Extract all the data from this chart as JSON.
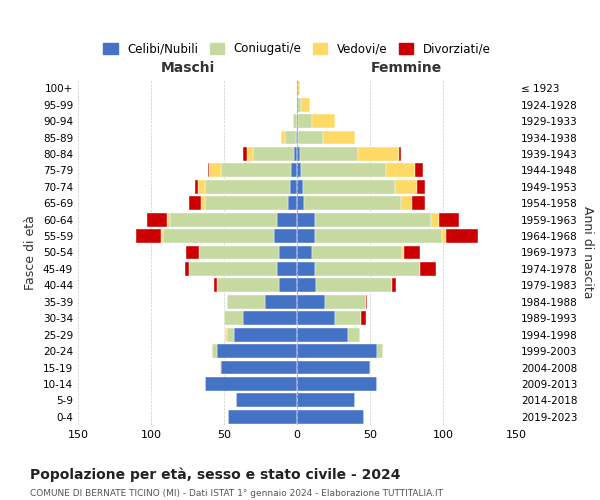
{
  "age_groups": [
    "0-4",
    "5-9",
    "10-14",
    "15-19",
    "20-24",
    "25-29",
    "30-34",
    "35-39",
    "40-44",
    "45-49",
    "50-54",
    "55-59",
    "60-64",
    "65-69",
    "70-74",
    "75-79",
    "80-84",
    "85-89",
    "90-94",
    "95-99",
    "100+"
  ],
  "birth_years": [
    "2019-2023",
    "2014-2018",
    "2009-2013",
    "2004-2008",
    "1999-2003",
    "1994-1998",
    "1989-1993",
    "1984-1988",
    "1979-1983",
    "1974-1978",
    "1969-1973",
    "1964-1968",
    "1959-1963",
    "1954-1958",
    "1949-1953",
    "1944-1948",
    "1939-1943",
    "1934-1938",
    "1929-1933",
    "1924-1928",
    "≤ 1923"
  ],
  "male": {
    "celibi": [
      47,
      42,
      63,
      52,
      55,
      43,
      37,
      22,
      12,
      14,
      12,
      16,
      14,
      6,
      5,
      4,
      2,
      1,
      0,
      0,
      0
    ],
    "coniugati": [
      0,
      0,
      0,
      1,
      3,
      5,
      13,
      26,
      43,
      60,
      55,
      76,
      73,
      57,
      58,
      48,
      28,
      7,
      3,
      0,
      0
    ],
    "vedovi": [
      0,
      0,
      0,
      0,
      0,
      1,
      0,
      0,
      0,
      0,
      0,
      1,
      2,
      3,
      5,
      8,
      4,
      3,
      0,
      0,
      0
    ],
    "divorziati": [
      0,
      0,
      0,
      0,
      0,
      0,
      0,
      0,
      2,
      3,
      9,
      17,
      14,
      8,
      2,
      1,
      3,
      0,
      0,
      0,
      0
    ]
  },
  "female": {
    "celibi": [
      46,
      40,
      55,
      50,
      55,
      35,
      26,
      19,
      13,
      12,
      10,
      12,
      12,
      5,
      4,
      3,
      2,
      1,
      1,
      0,
      0
    ],
    "coniugati": [
      0,
      0,
      0,
      1,
      4,
      8,
      18,
      28,
      52,
      72,
      62,
      87,
      80,
      66,
      63,
      58,
      40,
      17,
      9,
      3,
      0
    ],
    "vedovi": [
      0,
      0,
      0,
      0,
      0,
      0,
      0,
      0,
      0,
      0,
      1,
      3,
      5,
      8,
      15,
      20,
      28,
      22,
      16,
      6,
      2
    ],
    "divorziati": [
      0,
      0,
      0,
      0,
      0,
      0,
      3,
      1,
      3,
      11,
      11,
      22,
      14,
      9,
      6,
      5,
      1,
      0,
      0,
      0,
      0
    ]
  },
  "colors": {
    "celibi": "#4472C4",
    "coniugati": "#C5D9A0",
    "vedovi": "#FFD966",
    "divorziati": "#CC0000"
  },
  "legend_labels": [
    "Celibi/Nubili",
    "Coniugati/e",
    "Vedovi/e",
    "Divorziati/e"
  ],
  "title": "Popolazione per età, sesso e stato civile - 2024",
  "subtitle": "COMUNE DI BERNATE TICINO (MI) - Dati ISTAT 1° gennaio 2024 - Elaborazione TUTTITALIA.IT",
  "xlabel_left": "Maschi",
  "xlabel_right": "Femmine",
  "ylabel_left": "Fasce di età",
  "ylabel_right": "Anni di nascita",
  "xlim": 150,
  "background_color": "#ffffff"
}
